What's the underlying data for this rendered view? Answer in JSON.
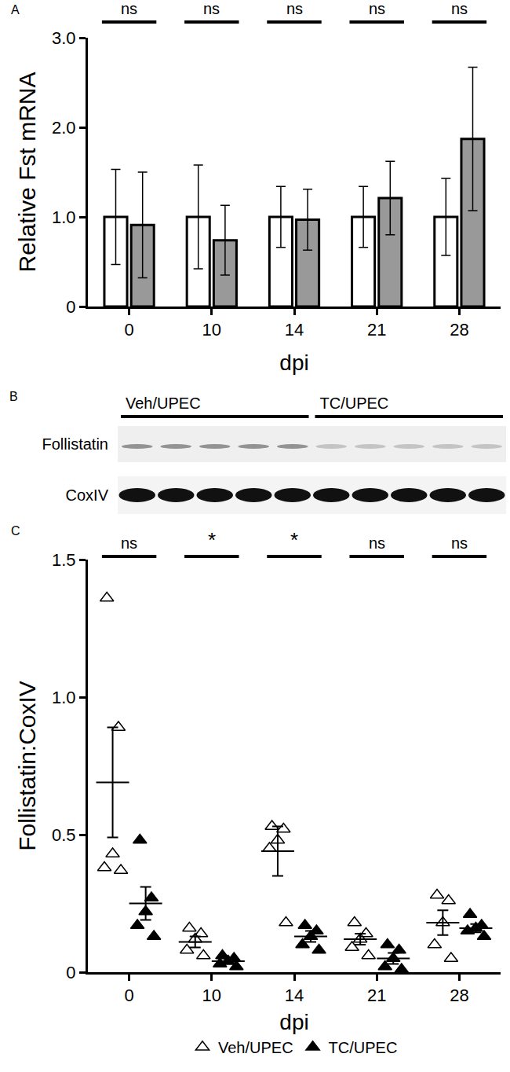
{
  "chart_data": [
    {
      "panel": "A",
      "type": "bar",
      "x_label": "dpi",
      "y_label": "Relative Fst mRNA",
      "categories": [
        "0",
        "10",
        "14",
        "21",
        "28"
      ],
      "series": [
        {
          "name": "Veh/UPEC",
          "color": "#ffffff",
          "values": [
            1.0,
            1.0,
            1.0,
            1.0,
            1.0
          ],
          "error": [
            0.53,
            0.58,
            0.34,
            0.34,
            0.43
          ]
        },
        {
          "name": "TC/UPEC",
          "color": "#999999",
          "values": [
            0.91,
            0.74,
            0.97,
            1.21,
            1.87
          ],
          "error": [
            0.59,
            0.39,
            0.34,
            0.41,
            0.8
          ]
        }
      ],
      "ylim": [
        0,
        3.0
      ],
      "yticks": [
        0,
        {
          "value": 1,
          "label": "1.0"
        },
        {
          "value": 2,
          "label": "2.0"
        },
        {
          "value": 3,
          "label": "3.0"
        }
      ],
      "annotations": [
        "ns",
        "ns",
        "ns",
        "ns",
        "ns"
      ]
    },
    {
      "panel": "C",
      "type": "scatter",
      "x_label": "dpi",
      "y_label": "Follistatin:CoxIV",
      "categories": [
        "0",
        "10",
        "14",
        "21",
        "28"
      ],
      "series": [
        {
          "name": "Veh/UPEC",
          "color": "#000000",
          "marker": "triangle-up-open",
          "values": [
            [
              1.36,
              0.89,
              0.43,
              0.38,
              0.37
            ],
            [
              0.16,
              0.14,
              0.12,
              0.08,
              0.06
            ],
            [
              0.53,
              0.52,
              0.48,
              0.45,
              0.18
            ],
            [
              0.18,
              0.14,
              0.12,
              0.09,
              0.06
            ],
            [
              0.28,
              0.26,
              0.18,
              0.1,
              0.05
            ]
          ],
          "mean": [
            0.69,
            0.11,
            0.44,
            0.12,
            0.18
          ],
          "sem": [
            0.2,
            0.02,
            0.09,
            0.02,
            0.045
          ]
        },
        {
          "name": "TC/UPEC",
          "color": "#000000",
          "marker": "triangle-up",
          "values": [
            [
              0.48,
              0.27,
              0.22,
              0.17,
              0.13
            ],
            [
              0.06,
              0.05,
              0.04,
              0.03,
              0.02
            ],
            [
              0.17,
              0.15,
              0.13,
              0.1,
              0.08
            ],
            [
              0.1,
              0.08,
              0.05,
              0.02,
              0.01
            ],
            [
              0.21,
              0.17,
              0.16,
              0.15,
              0.13
            ]
          ],
          "mean": [
            0.25,
            0.04,
            0.13,
            0.05,
            0.16
          ],
          "sem": [
            0.06,
            0.01,
            0.02,
            0.02,
            0.015
          ]
        }
      ],
      "ylim": [
        0,
        1.5
      ],
      "yticks": [
        0,
        0.5,
        {
          "value": 1,
          "label": "1.0"
        },
        1.5
      ],
      "annotations": [
        "ns",
        "*",
        "*",
        "ns",
        "ns"
      ],
      "legend": "bottom"
    }
  ],
  "blot": {
    "panel": "B",
    "groups": [
      {
        "label": "Veh/UPEC",
        "lanes": 5
      },
      {
        "label": "TC/UPEC",
        "lanes": 5
      }
    ],
    "rows": [
      "Follistatin",
      "CoxIV"
    ]
  }
}
